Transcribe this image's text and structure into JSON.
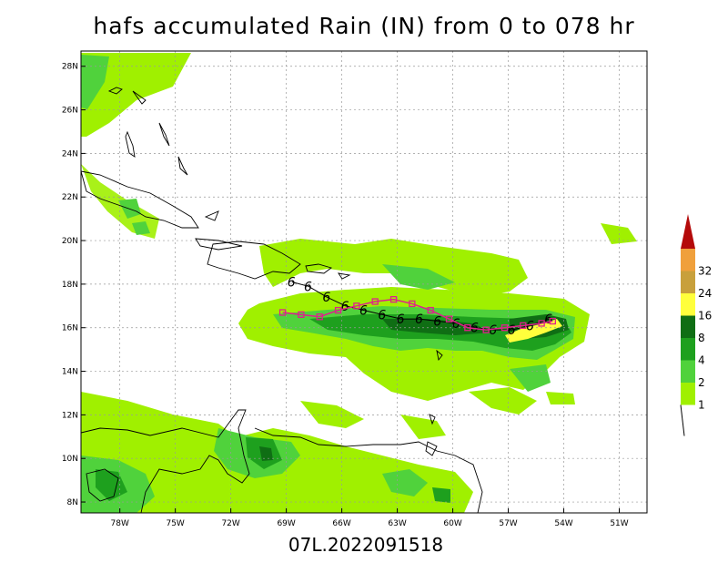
{
  "title": "hafs accumulated Rain (IN) from 0 to 078 hr",
  "footer": "07L.2022091518",
  "lat_labels": [
    "28N",
    "26N",
    "24N",
    "22N",
    "20N",
    "18N",
    "16N",
    "14N",
    "12N",
    "10N",
    "8N"
  ],
  "lon_labels": [
    "78W",
    "75W",
    "72W",
    "69W",
    "66W",
    "63W",
    "60W",
    "57W",
    "54W",
    "51W"
  ],
  "colorbar": {
    "levels": [
      "1",
      "2",
      "4",
      "8",
      "16",
      "24",
      "32"
    ],
    "colors": [
      "#a0f000",
      "#50d23c",
      "#1ea01e",
      "#0f6e14",
      "#ffff3c",
      "#c8a03c",
      "#f0a03c",
      "#b40a0a"
    ]
  },
  "map": {
    "lat_min": 7.5,
    "lat_max": 28.7,
    "lon_min": -80.1,
    "lon_max": -49.5,
    "track_black": [
      [
        -68.7,
        18.1
      ],
      [
        -67.8,
        17.9
      ],
      [
        -66.8,
        17.4
      ],
      [
        -65.8,
        17.0
      ],
      [
        -64.8,
        16.8
      ],
      [
        -63.8,
        16.6
      ],
      [
        -62.8,
        16.4
      ],
      [
        -61.8,
        16.4
      ],
      [
        -60.8,
        16.3
      ],
      [
        -59.8,
        16.2
      ],
      [
        -58.8,
        16.0
      ],
      [
        -57.8,
        15.9
      ],
      [
        -56.8,
        15.9
      ],
      [
        -55.8,
        16.1
      ],
      [
        -54.8,
        16.4
      ]
    ],
    "track_magenta": [
      [
        -69.2,
        16.7
      ],
      [
        -68.2,
        16.6
      ],
      [
        -67.2,
        16.5
      ],
      [
        -66.2,
        16.8
      ],
      [
        -65.2,
        17.0
      ],
      [
        -64.2,
        17.2
      ],
      [
        -63.2,
        17.3
      ],
      [
        -62.2,
        17.1
      ],
      [
        -61.2,
        16.8
      ],
      [
        -60.2,
        16.4
      ],
      [
        -59.2,
        16.0
      ],
      [
        -58.2,
        15.9
      ],
      [
        -57.2,
        16.0
      ],
      [
        -56.2,
        16.1
      ],
      [
        -55.2,
        16.2
      ],
      [
        -54.6,
        16.3
      ]
    ]
  }
}
